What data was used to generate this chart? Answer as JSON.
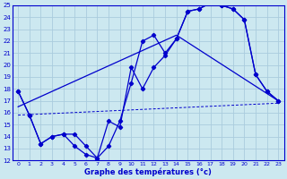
{
  "title": "Graphe des températures (°c)",
  "bg_color": "#cce8f0",
  "grid_color": "#aaccdd",
  "line_color": "#0000cc",
  "xlim": [
    -0.5,
    23.5
  ],
  "ylim": [
    12,
    25
  ],
  "xticks": [
    0,
    1,
    2,
    3,
    4,
    5,
    6,
    7,
    8,
    9,
    10,
    11,
    12,
    13,
    14,
    15,
    16,
    17,
    18,
    19,
    20,
    21,
    22,
    23
  ],
  "yticks": [
    12,
    13,
    14,
    15,
    16,
    17,
    18,
    19,
    20,
    21,
    22,
    23,
    24,
    25
  ],
  "curve1_x": [
    0,
    1,
    2,
    3,
    4,
    5,
    6,
    7,
    8,
    9,
    10,
    11,
    12,
    13,
    14,
    15,
    16,
    17,
    18,
    19,
    20,
    21,
    22,
    23
  ],
  "curve1_y": [
    17.8,
    15.8,
    13.4,
    14.0,
    14.2,
    13.2,
    12.5,
    12.2,
    15.3,
    14.8,
    19.8,
    18.0,
    19.8,
    20.8,
    22.2,
    24.5,
    24.7,
    25.2,
    25.0,
    24.7,
    23.8,
    19.2,
    17.8,
    17.0
  ],
  "curve2_x": [
    0,
    1,
    2,
    3,
    4,
    5,
    6,
    7,
    8,
    9,
    10,
    11,
    12,
    13,
    14,
    15,
    16,
    17,
    18,
    19,
    20,
    21,
    22,
    23
  ],
  "curve2_y": [
    17.8,
    15.8,
    13.4,
    14.0,
    14.2,
    14.2,
    13.2,
    12.2,
    13.2,
    15.3,
    18.5,
    22.0,
    22.5,
    21.0,
    22.2,
    24.5,
    24.7,
    25.2,
    25.0,
    24.7,
    23.8,
    19.2,
    17.8,
    17.0
  ],
  "line3_x": [
    0,
    23
  ],
  "line3_y": [
    15.8,
    16.8
  ],
  "line4_x": [
    0,
    14,
    23
  ],
  "line4_y": [
    16.5,
    22.5,
    17.0
  ]
}
